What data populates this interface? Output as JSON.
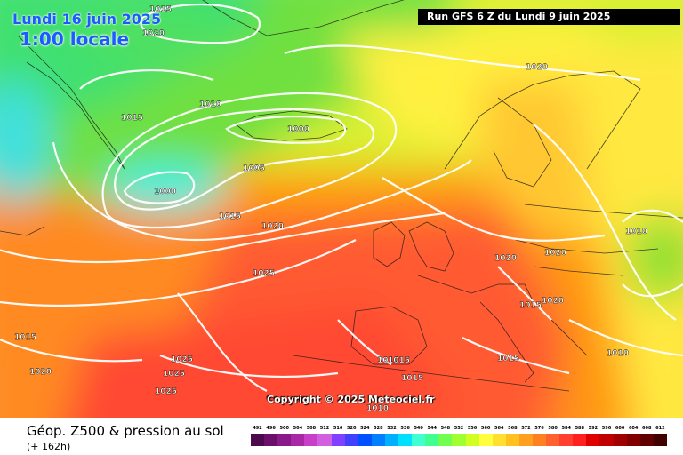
{
  "title": {
    "date": "Lundi 16 juin 2025",
    "time": "1:00 locale"
  },
  "run_label": "Run GFS 6 Z du Lundi 9 juin 2025",
  "copyright": "Copyright © 2025 Meteociel.fr",
  "product": {
    "name": "Géop. Z500 & pression au sol",
    "lead": "(+ 162h)"
  },
  "isobar_labels": [
    "1015",
    "1020",
    "1015",
    "1010",
    "1000",
    "1005",
    "1000",
    "1015",
    "1020",
    "1025",
    "1020",
    "1020",
    "1020",
    "1010",
    "1015",
    "1020",
    "1015",
    "1020",
    "1025",
    "1025",
    "1025",
    "1010",
    "1015",
    "1015",
    "1015",
    "1010",
    "1010"
  ],
  "legend": {
    "values": [
      "492",
      "496",
      "500",
      "504",
      "508",
      "512",
      "516",
      "520",
      "524",
      "528",
      "532",
      "536",
      "540",
      "544",
      "548",
      "552",
      "556",
      "560",
      "564",
      "568",
      "572",
      "576",
      "580",
      "584",
      "588",
      "592",
      "596",
      "600",
      "604",
      "608",
      "612"
    ],
    "colors": [
      "#4b0a4b",
      "#6a0f6a",
      "#8a1a8a",
      "#a828a8",
      "#c840c8",
      "#d060e0",
      "#8040ff",
      "#4040ff",
      "#0050ff",
      "#0080ff",
      "#00b0ff",
      "#00e0ff",
      "#40ffd0",
      "#40ff90",
      "#70ff50",
      "#a0ff30",
      "#d0ff20",
      "#ffff40",
      "#ffe030",
      "#ffc020",
      "#ffa020",
      "#ff8020",
      "#ff6030",
      "#ff4030",
      "#ff2020",
      "#e00000",
      "#c00000",
      "#a00000",
      "#800000",
      "#600000",
      "#400000"
    ]
  }
}
